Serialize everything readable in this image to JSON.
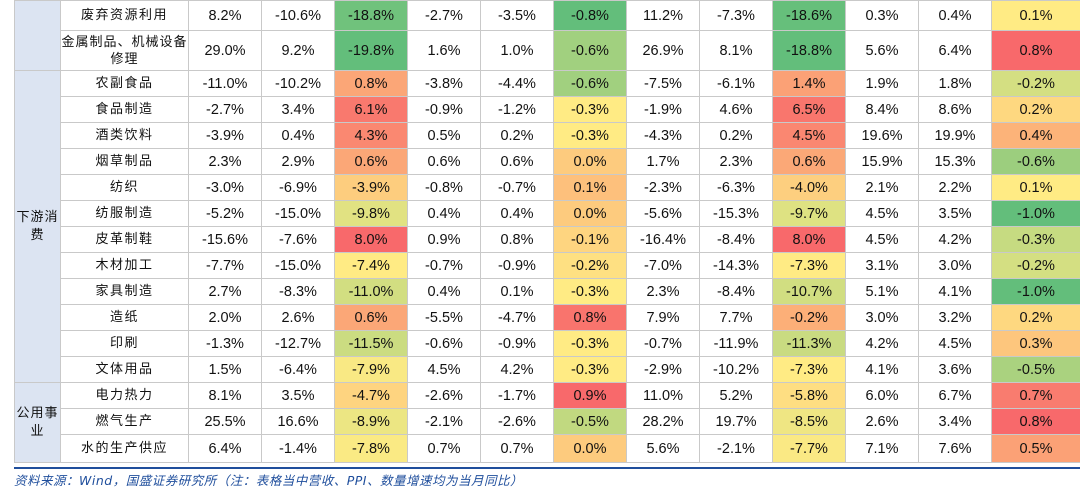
{
  "groups": [
    {
      "label": "",
      "start": 0,
      "span": 2
    },
    {
      "label": "下游消费",
      "start": 2,
      "span": 12
    },
    {
      "label": "公用事业",
      "start": 14,
      "span": 3
    }
  ],
  "rows": [
    {
      "name": "废弃资源利用",
      "values": [
        "8.2%",
        "-10.6%",
        "-18.8%",
        "-2.7%",
        "-3.5%",
        "-0.8%",
        "11.2%",
        "-7.3%",
        "-18.6%",
        "0.3%",
        "0.4%",
        "0.1%"
      ]
    },
    {
      "name": "金属制品、机械设备修理",
      "values": [
        "29.0%",
        "9.2%",
        "-19.8%",
        "1.6%",
        "1.0%",
        "-0.6%",
        "26.9%",
        "8.1%",
        "-18.8%",
        "5.6%",
        "6.4%",
        "0.8%"
      ]
    },
    {
      "name": "农副食品",
      "values": [
        "-11.0%",
        "-10.2%",
        "0.8%",
        "-3.8%",
        "-4.4%",
        "-0.6%",
        "-7.5%",
        "-6.1%",
        "1.4%",
        "1.9%",
        "1.8%",
        "-0.2%"
      ]
    },
    {
      "name": "食品制造",
      "values": [
        "-2.7%",
        "3.4%",
        "6.1%",
        "-0.9%",
        "-1.2%",
        "-0.3%",
        "-1.9%",
        "4.6%",
        "6.5%",
        "8.4%",
        "8.6%",
        "0.2%"
      ]
    },
    {
      "name": "酒类饮料",
      "values": [
        "-3.9%",
        "0.4%",
        "4.3%",
        "0.5%",
        "0.2%",
        "-0.3%",
        "-4.3%",
        "0.2%",
        "4.5%",
        "19.6%",
        "19.9%",
        "0.4%"
      ]
    },
    {
      "name": "烟草制品",
      "values": [
        "2.3%",
        "2.9%",
        "0.6%",
        "0.6%",
        "0.6%",
        "0.0%",
        "1.7%",
        "2.3%",
        "0.6%",
        "15.9%",
        "15.3%",
        "-0.6%"
      ]
    },
    {
      "name": "纺织",
      "values": [
        "-3.0%",
        "-6.9%",
        "-3.9%",
        "-0.8%",
        "-0.7%",
        "0.1%",
        "-2.3%",
        "-6.3%",
        "-4.0%",
        "2.1%",
        "2.2%",
        "0.1%"
      ]
    },
    {
      "name": "纺服制造",
      "values": [
        "-5.2%",
        "-15.0%",
        "-9.8%",
        "0.4%",
        "0.4%",
        "0.0%",
        "-5.6%",
        "-15.3%",
        "-9.7%",
        "4.5%",
        "3.5%",
        "-1.0%"
      ]
    },
    {
      "name": "皮革制鞋",
      "values": [
        "-15.6%",
        "-7.6%",
        "8.0%",
        "0.9%",
        "0.8%",
        "-0.1%",
        "-16.4%",
        "-8.4%",
        "8.0%",
        "4.5%",
        "4.2%",
        "-0.3%"
      ]
    },
    {
      "name": "木材加工",
      "values": [
        "-7.7%",
        "-15.0%",
        "-7.4%",
        "-0.7%",
        "-0.9%",
        "-0.2%",
        "-7.0%",
        "-14.3%",
        "-7.3%",
        "3.1%",
        "3.0%",
        "-0.2%"
      ]
    },
    {
      "name": "家具制造",
      "values": [
        "2.7%",
        "-8.3%",
        "-11.0%",
        "0.4%",
        "0.1%",
        "-0.3%",
        "2.3%",
        "-8.4%",
        "-10.7%",
        "5.1%",
        "4.1%",
        "-1.0%"
      ]
    },
    {
      "name": "造纸",
      "values": [
        "2.0%",
        "2.6%",
        "0.6%",
        "-5.5%",
        "-4.7%",
        "0.8%",
        "7.9%",
        "7.7%",
        "-0.2%",
        "3.0%",
        "3.2%",
        "0.2%"
      ]
    },
    {
      "name": "印刷",
      "values": [
        "-1.3%",
        "-12.7%",
        "-11.5%",
        "-0.6%",
        "-0.9%",
        "-0.3%",
        "-0.7%",
        "-11.9%",
        "-11.3%",
        "4.2%",
        "4.5%",
        "0.3%"
      ]
    },
    {
      "name": "文体用品",
      "values": [
        "1.5%",
        "-6.4%",
        "-7.9%",
        "4.5%",
        "4.2%",
        "-0.3%",
        "-2.9%",
        "-10.2%",
        "-7.3%",
        "4.1%",
        "3.6%",
        "-0.5%"
      ]
    },
    {
      "name": "电力热力",
      "values": [
        "8.1%",
        "3.5%",
        "-4.7%",
        "-2.6%",
        "-1.7%",
        "0.9%",
        "11.0%",
        "5.2%",
        "-5.8%",
        "6.0%",
        "6.7%",
        "0.7%"
      ]
    },
    {
      "name": "燃气生产",
      "values": [
        "25.5%",
        "16.6%",
        "-8.9%",
        "-2.1%",
        "-2.6%",
        "-0.5%",
        "28.2%",
        "19.7%",
        "-8.5%",
        "2.6%",
        "3.4%",
        "0.8%"
      ]
    },
    {
      "name": "水的生产供应",
      "values": [
        "6.4%",
        "-1.4%",
        "-7.8%",
        "0.7%",
        "0.7%",
        "0.0%",
        "5.6%",
        "-2.1%",
        "-7.7%",
        "7.1%",
        "7.6%",
        "0.5%"
      ]
    }
  ],
  "heat_columns": [
    2,
    5,
    8,
    11
  ],
  "colors": {
    "green": "#63be7b",
    "yellow": "#ffeb84",
    "red": "#f8696b",
    "group_bg": "#dce4f2",
    "source_text": "#1f4e9c"
  },
  "source_note": "资料来源：Wind，国盛证券研究所（注：表格当中营收、PPI、数量增速均为当月同比）"
}
